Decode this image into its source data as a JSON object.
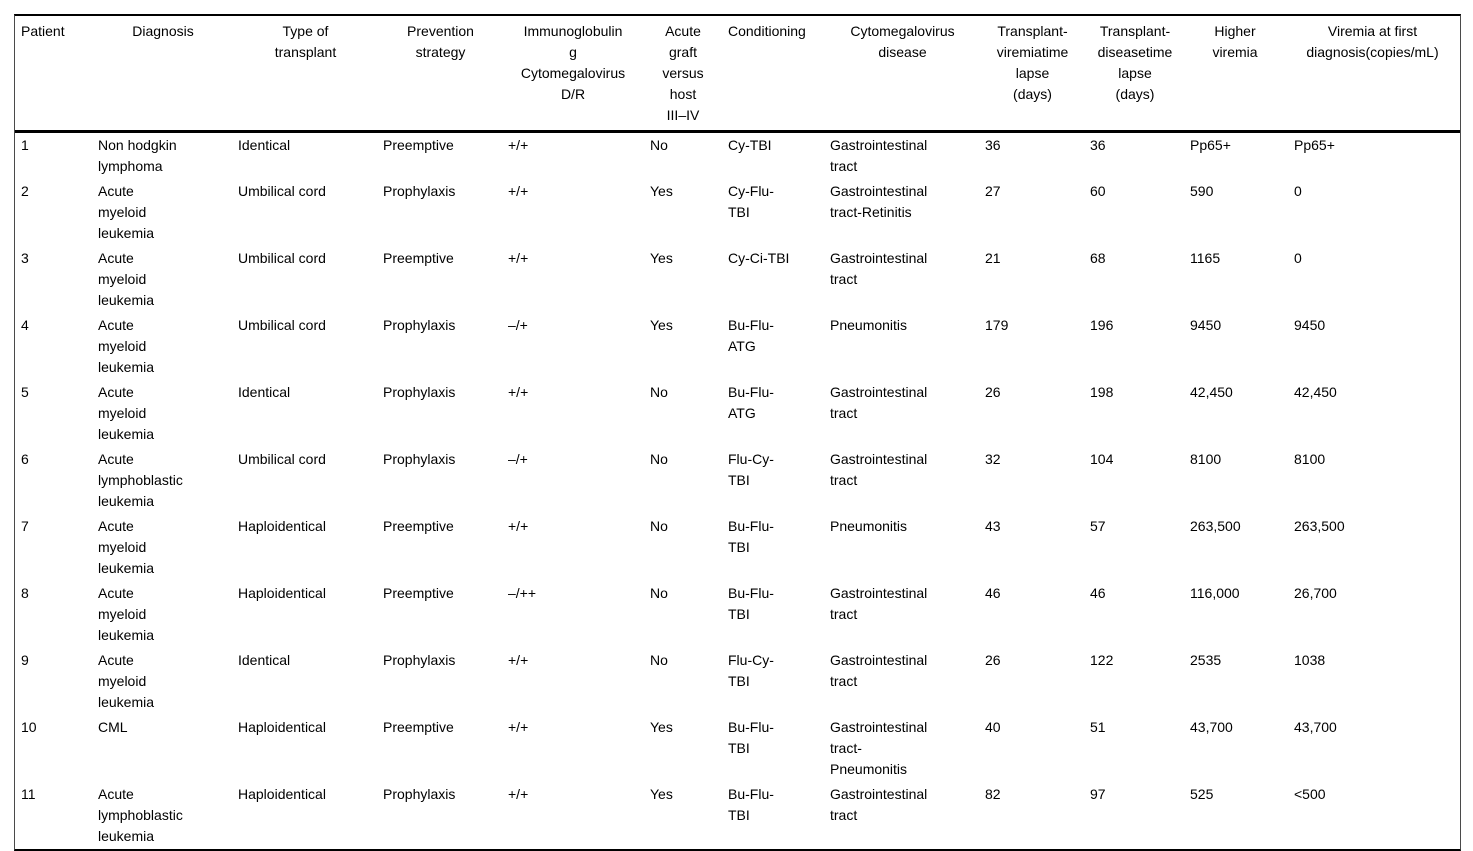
{
  "table": {
    "columns": [
      {
        "id": "patient",
        "header": "Patient"
      },
      {
        "id": "diagnosis",
        "header": "Diagnosis"
      },
      {
        "id": "transplant-type",
        "header": "Type of\ntransplant"
      },
      {
        "id": "prevention-strategy",
        "header": "Prevention\nstrategy"
      },
      {
        "id": "immunoglobulin-cmv-dr",
        "header": "Immunoglobulin\ng\nCytomegalovirus\nD/R"
      },
      {
        "id": "acute-gvhd",
        "header": "Acute\ngraft\nversus\nhost\nIII–IV"
      },
      {
        "id": "conditioning",
        "header": "Conditioning"
      },
      {
        "id": "cmv-disease",
        "header": "Cytomegalovirus\ndisease"
      },
      {
        "id": "transplant-viremia-lapse",
        "header": "Transplant-\nviremiatime\nlapse\n(days)"
      },
      {
        "id": "transplant-disease-lapse",
        "header": "Transplant-\ndiseasetime\nlapse\n(days)"
      },
      {
        "id": "higher-viremia",
        "header": "Higher\nviremia"
      },
      {
        "id": "viremia-first-diagnosis",
        "header": "Viremia at first\ndiagnosis(copies/mL)"
      }
    ],
    "rows": [
      {
        "cells": [
          "1",
          "Non hodgkin\nlymphoma",
          "Identical",
          "Preemptive",
          "+/+",
          "No",
          "Cy-TBI",
          "Gastrointestinal\ntract",
          "36",
          "36",
          "Pp65+",
          "Pp65+"
        ]
      },
      {
        "cells": [
          "2",
          "Acute\nmyeloid\nleukemia",
          "Umbilical cord",
          "Prophylaxis",
          "+/+",
          "Yes",
          "Cy-Flu-\nTBI",
          "Gastrointestinal\ntract-Retinitis",
          "27",
          "60",
          "590",
          "0"
        ]
      },
      {
        "cells": [
          "3",
          "Acute\nmyeloid\nleukemia",
          "Umbilical cord",
          "Preemptive",
          "+/+",
          "Yes",
          "Cy-Ci-TBI",
          "Gastrointestinal\ntract",
          "21",
          "68",
          "1165",
          "0"
        ]
      },
      {
        "cells": [
          "4",
          "Acute\nmyeloid\nleukemia",
          "Umbilical cord",
          "Prophylaxis",
          "–/+",
          "Yes",
          "Bu-Flu-\nATG",
          "Pneumonitis",
          "179",
          "196",
          "9450",
          "9450"
        ]
      },
      {
        "cells": [
          "5",
          "Acute\nmyeloid\nleukemia",
          "Identical",
          "Prophylaxis",
          "+/+",
          "No",
          "Bu-Flu-\nATG",
          "Gastrointestinal\ntract",
          "26",
          "198",
          "42,450",
          "42,450"
        ]
      },
      {
        "cells": [
          "6",
          "Acute\nlymphoblastic\nleukemia",
          "Umbilical cord",
          "Prophylaxis",
          "–/+",
          "No",
          "Flu-Cy-\nTBI",
          "Gastrointestinal\ntract",
          "32",
          "104",
          "8100",
          "8100"
        ]
      },
      {
        "cells": [
          "7",
          "Acute\nmyeloid\nleukemia",
          "Haploidentical",
          "Preemptive",
          "+/+",
          "No",
          "Bu-Flu-\nTBI",
          "Pneumonitis",
          "43",
          "57",
          "263,500",
          "263,500"
        ]
      },
      {
        "cells": [
          "8",
          "Acute\nmyeloid\nleukemia",
          "Haploidentical",
          "Preemptive",
          "–/++",
          "No",
          "Bu-Flu-\nTBI",
          "Gastrointestinal\ntract",
          "46",
          "46",
          "116,000",
          "26,700"
        ]
      },
      {
        "cells": [
          "9",
          "Acute\nmyeloid\nleukemia",
          "Identical",
          "Prophylaxis",
          "+/+",
          "No",
          "Flu-Cy-\nTBI",
          "Gastrointestinal\ntract",
          "26",
          "122",
          "2535",
          "1038"
        ]
      },
      {
        "cells": [
          "10",
          "CML",
          "Haploidentical",
          "Preemptive",
          "+/+",
          "Yes",
          "Bu-Flu-\nTBI",
          "Gastrointestinal\ntract-\nPneumonitis",
          "40",
          "51",
          "43,700",
          "43,700"
        ]
      },
      {
        "cells": [
          "11",
          "Acute\nlymphoblastic\nleukemia",
          "Haploidentical",
          "Prophylaxis",
          "+/+",
          "Yes",
          "Bu-Flu-\nTBI",
          "Gastrointestinal\ntract",
          "82",
          "97",
          "525",
          "<500"
        ]
      }
    ]
  }
}
